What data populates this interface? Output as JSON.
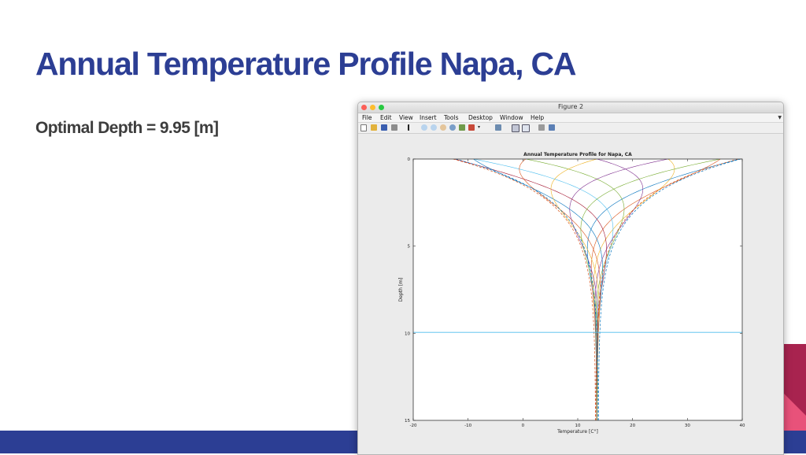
{
  "slide": {
    "title": "Annual Temperature Profile Napa, CA",
    "subtitle": "Optimal Depth = 9.95 [m]"
  },
  "window": {
    "title": "Figure 2",
    "menu": [
      "File",
      "Edit",
      "View",
      "Insert",
      "Tools",
      "Desktop",
      "Window",
      "Help"
    ],
    "toolbar_icons": [
      "new-file-icon",
      "open-folder-icon",
      "save-icon",
      "print-icon",
      "pointer-icon",
      "zoom-in-icon",
      "zoom-out-icon",
      "pan-icon",
      "rotate-icon",
      "data-cursor-icon",
      "brush-icon",
      "link-plot-icon",
      "colorbar-icon",
      "legend-icon",
      "hide-tools-icon",
      "show-tools-icon"
    ]
  },
  "colors": {
    "title": "#2c3e94",
    "subtitle": "#3d3d3d",
    "footer": "#2c3e94",
    "accent_red": "#a8234f",
    "accent_pink": "#e8527a"
  },
  "chart_data": {
    "type": "line",
    "title": "Annual Temperature Profile for Napa, CA",
    "xlabel": "Temperature [C°]",
    "ylabel": "Depth [m]",
    "xlim": [
      -20,
      40
    ],
    "ylim": [
      0,
      15
    ],
    "y_reversed": true,
    "x_ticks": [
      -20,
      -10,
      0,
      10,
      20,
      30,
      40
    ],
    "y_ticks": [
      0,
      5,
      10,
      15
    ],
    "grid": false,
    "mean_temperature": 13.5,
    "amplitude_at_surface": 26,
    "damping_depth": 2.2,
    "envelope": {
      "style": "dashed",
      "min_at_surface": -12.5,
      "max_at_surface": 39.5
    },
    "profiles_phase_deg": [
      0,
      30,
      60,
      90,
      120,
      150,
      180,
      210,
      240,
      270,
      300,
      330
    ],
    "series_colors": [
      "#0072bd",
      "#d95319",
      "#edb120",
      "#7e2f8e",
      "#77ac30",
      "#4dbeee",
      "#a2142f",
      "#0072bd",
      "#d95319",
      "#edb120",
      "#7e2f8e",
      "#77ac30"
    ],
    "optimal_depth_line": {
      "depth": 9.95,
      "color": "#4dbeee"
    }
  }
}
